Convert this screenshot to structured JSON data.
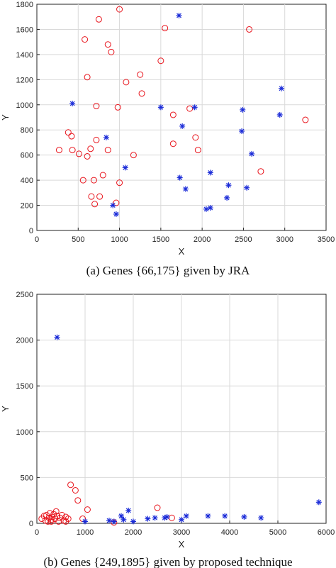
{
  "chart_data": [
    {
      "type": "scatter",
      "caption": "(a)   Genes {66,175} given by JRA",
      "xlabel": "X",
      "ylabel": "Y",
      "xlim": [
        0,
        3500
      ],
      "ylim": [
        0,
        1800
      ],
      "xticks": [
        "0",
        "500",
        "1000",
        "1500",
        "2000",
        "2500",
        "3000",
        "3500"
      ],
      "yticks": [
        "0",
        "200",
        "400",
        "600",
        "800",
        "1000",
        "1200",
        "1400",
        "1600",
        "1800"
      ],
      "grid": true,
      "marker_colors": {
        "circle": "#e8141c",
        "star": "#1a2bd8"
      },
      "series": [
        {
          "marker": "circle",
          "points": [
            [
              1000,
              1760
            ],
            [
              580,
              1520
            ],
            [
              900,
              1420
            ],
            [
              610,
              1220
            ],
            [
              720,
              990
            ],
            [
              380,
              780
            ],
            [
              430,
              640
            ],
            [
              510,
              610
            ],
            [
              270,
              640
            ],
            [
              560,
              400
            ],
            [
              610,
              590
            ],
            [
              690,
              400
            ],
            [
              660,
              270
            ],
            [
              700,
              210
            ],
            [
              760,
              270
            ],
            [
              960,
              220
            ],
            [
              1000,
              380
            ],
            [
              800,
              440
            ],
            [
              860,
              640
            ],
            [
              720,
              720
            ],
            [
              420,
              750
            ],
            [
              650,
              650
            ],
            [
              1170,
              600
            ],
            [
              1080,
              1180
            ],
            [
              1250,
              1240
            ],
            [
              1270,
              1090
            ],
            [
              1500,
              1350
            ],
            [
              1550,
              1610
            ],
            [
              1650,
              920
            ],
            [
              1650,
              690
            ],
            [
              1850,
              970
            ],
            [
              1920,
              740
            ],
            [
              1950,
              640
            ],
            [
              2570,
              1600
            ],
            [
              2710,
              470
            ],
            [
              3250,
              880
            ],
            [
              750,
              1680
            ],
            [
              860,
              1480
            ],
            [
              980,
              980
            ]
          ]
        },
        {
          "marker": "star",
          "points": [
            [
              430,
              1010
            ],
            [
              840,
              740
            ],
            [
              1070,
              500
            ],
            [
              920,
              200
            ],
            [
              960,
              130
            ],
            [
              1500,
              980
            ],
            [
              1730,
              420
            ],
            [
              1760,
              830
            ],
            [
              1800,
              330
            ],
            [
              1910,
              980
            ],
            [
              2050,
              170
            ],
            [
              2100,
              180
            ],
            [
              2100,
              460
            ],
            [
              2300,
              260
            ],
            [
              2320,
              360
            ],
            [
              2480,
              790
            ],
            [
              2490,
              960
            ],
            [
              2540,
              340
            ],
            [
              2600,
              610
            ],
            [
              2940,
              920
            ],
            [
              2960,
              1130
            ],
            [
              1720,
              1710
            ]
          ]
        }
      ]
    },
    {
      "type": "scatter",
      "caption": "(b) Genes {249,1895} given by proposed technique",
      "xlabel": "X",
      "ylabel": "Y",
      "xlim": [
        0,
        6000
      ],
      "ylim": [
        0,
        2500
      ],
      "xticks": [
        "0",
        "1000",
        "2000",
        "3000",
        "4000",
        "5000",
        "6000"
      ],
      "yticks": [
        "0",
        "500",
        "1000",
        "1500",
        "2000",
        "2500"
      ],
      "grid": true,
      "marker_colors": {
        "circle": "#e8141c",
        "star": "#1a2bd8"
      },
      "series": [
        {
          "marker": "circle",
          "points": [
            [
              100,
              50
            ],
            [
              150,
              80
            ],
            [
              180,
              30
            ],
            [
              200,
              90
            ],
            [
              230,
              20
            ],
            [
              250,
              60
            ],
            [
              270,
              110
            ],
            [
              300,
              40
            ],
            [
              320,
              70
            ],
            [
              350,
              100
            ],
            [
              380,
              50
            ],
            [
              400,
              130
            ],
            [
              420,
              80
            ],
            [
              450,
              20
            ],
            [
              480,
              60
            ],
            [
              520,
              90
            ],
            [
              560,
              30
            ],
            [
              600,
              70
            ],
            [
              650,
              50
            ],
            [
              700,
              420
            ],
            [
              800,
              360
            ],
            [
              850,
              250
            ],
            [
              950,
              50
            ],
            [
              1050,
              150
            ],
            [
              1600,
              10
            ],
            [
              2500,
              170
            ],
            [
              2800,
              60
            ],
            [
              300,
              20
            ],
            [
              600,
              20
            ]
          ]
        },
        {
          "marker": "star",
          "points": [
            [
              420,
              2030
            ],
            [
              1000,
              20
            ],
            [
              1500,
              30
            ],
            [
              1750,
              80
            ],
            [
              1800,
              40
            ],
            [
              1900,
              140
            ],
            [
              2000,
              20
            ],
            [
              2300,
              50
            ],
            [
              2450,
              60
            ],
            [
              2700,
              70
            ],
            [
              3000,
              40
            ],
            [
              3100,
              80
            ],
            [
              3550,
              80
            ],
            [
              3900,
              80
            ],
            [
              4300,
              70
            ],
            [
              4650,
              60
            ],
            [
              5850,
              230
            ],
            [
              1600,
              20
            ],
            [
              2650,
              60
            ]
          ]
        }
      ]
    }
  ]
}
